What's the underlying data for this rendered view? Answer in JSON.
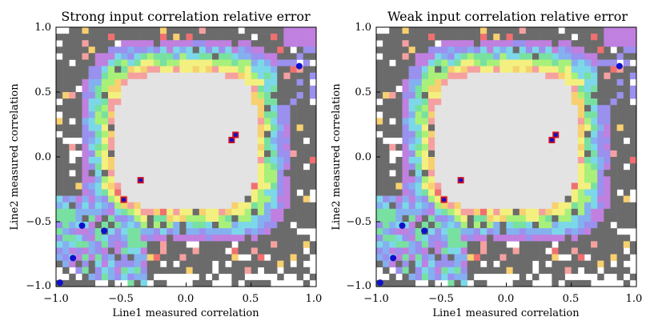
{
  "chart_data": [
    {
      "type": "heatmap",
      "title": "Strong input correlation relative error",
      "xlabel": "Line1 measured correlation",
      "ylabel": "Line2 measured correlation",
      "xlim": [
        -1.0,
        1.0
      ],
      "ylim": [
        -1.0,
        1.0
      ],
      "xticks": [
        "−1.0",
        "−0.5",
        "0.0",
        "0.5",
        "1.0"
      ],
      "yticks": [
        "1.0",
        "0.5",
        "0.0",
        "−0.5",
        "−1.0"
      ],
      "blue_points": [
        [
          0.87,
          0.7
        ],
        [
          -0.8,
          -0.53
        ],
        [
          -0.63,
          -0.57
        ],
        [
          -0.87,
          -0.78
        ],
        [
          -0.97,
          -0.97
        ]
      ],
      "red_points": [
        [
          0.35,
          0.13
        ],
        [
          0.38,
          0.17
        ],
        [
          -0.35,
          -0.18
        ],
        [
          -0.48,
          -0.33
        ]
      ]
    },
    {
      "type": "heatmap",
      "title": "Weak input correlation relative error",
      "xlabel": "Line1 measured correlation",
      "ylabel": "Line2 measured correlation",
      "xlim": [
        -1.0,
        1.0
      ],
      "ylim": [
        -1.0,
        1.0
      ],
      "xticks": [
        "−1.0",
        "−0.5",
        "0.0",
        "0.5",
        "1.0"
      ],
      "yticks": [
        "1.0",
        "0.5",
        "0.0",
        "−0.5",
        "−1.0"
      ],
      "blue_points": [
        [
          0.87,
          0.7
        ],
        [
          -0.8,
          -0.53
        ],
        [
          -0.63,
          -0.57
        ],
        [
          -0.87,
          -0.78
        ],
        [
          -0.97,
          -0.97
        ]
      ],
      "red_points": [
        [
          0.35,
          0.13
        ],
        [
          0.38,
          0.17
        ],
        [
          -0.35,
          -0.18
        ],
        [
          -0.48,
          -0.33
        ]
      ]
    }
  ],
  "colors": {
    "center": "#e3e3e3",
    "outer": "#6b6b6b",
    "palette": [
      "#f07070",
      "#f5a0a0",
      "#f7d070",
      "#f3f080",
      "#a8f07a",
      "#78e0a0",
      "#7cd8e8",
      "#84b0f0",
      "#9a90ee",
      "#c080e0"
    ],
    "blue_marker": "#1010cc",
    "red_marker": "#cc1020"
  }
}
